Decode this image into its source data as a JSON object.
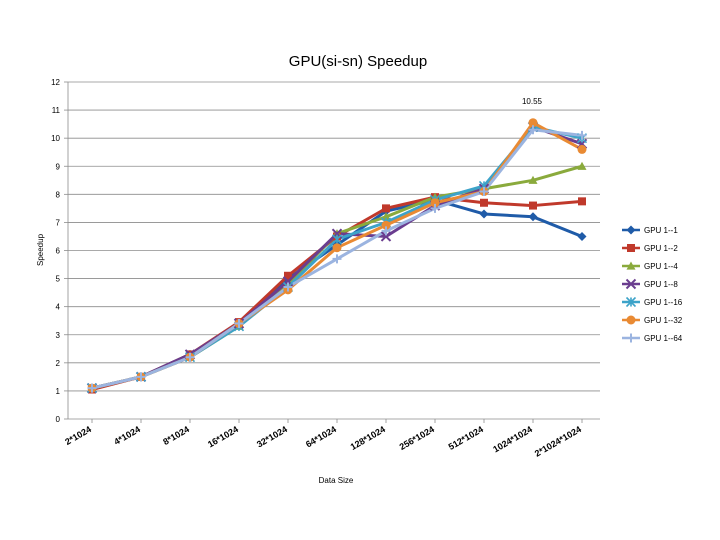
{
  "chart_data": {
    "type": "line",
    "title": "GPU(si-sn) Speedup",
    "xlabel": "Data Size",
    "ylabel": "Speedup",
    "ylim": [
      0,
      12
    ],
    "yticks": [
      0,
      1,
      2,
      3,
      4,
      5,
      6,
      7,
      8,
      9,
      10,
      11,
      12
    ],
    "grid": true,
    "legend_position": "right",
    "categories": [
      "2*1024",
      "4*1024",
      "8*1024",
      "16*1024",
      "32*1024",
      "64*1024",
      "128*1024",
      "256*1024",
      "512*1024",
      "1024*1024",
      "2*1024*1024"
    ],
    "annotation": {
      "text": "10.55",
      "series": "GPU 1--32",
      "index": 9
    },
    "series": [
      {
        "name": "GPU 1--1",
        "color": "#1f5ba8",
        "marker": "diamond",
        "values": [
          1.1,
          1.5,
          2.3,
          3.4,
          5.0,
          6.2,
          7.4,
          7.8,
          7.3,
          7.2,
          6.5
        ]
      },
      {
        "name": "GPU 1--2",
        "color": "#c0392b",
        "marker": "square",
        "values": [
          1.05,
          1.5,
          2.3,
          3.45,
          5.1,
          6.5,
          7.5,
          7.9,
          7.7,
          7.6,
          7.75
        ]
      },
      {
        "name": "GPU 1--4",
        "color": "#8aaa3c",
        "marker": "triangle",
        "values": [
          1.1,
          1.5,
          2.2,
          3.3,
          4.8,
          6.6,
          7.2,
          7.9,
          8.2,
          8.5,
          9.0
        ]
      },
      {
        "name": "GPU 1--8",
        "color": "#6a3d8f",
        "marker": "x",
        "values": [
          1.1,
          1.5,
          2.3,
          3.4,
          4.9,
          6.6,
          6.5,
          7.6,
          8.2,
          10.4,
          9.8
        ]
      },
      {
        "name": "GPU 1--16",
        "color": "#3da3c9",
        "marker": "asterisk",
        "values": [
          1.1,
          1.5,
          2.2,
          3.3,
          4.7,
          6.4,
          7.0,
          7.8,
          8.3,
          10.4,
          10.0
        ]
      },
      {
        "name": "GPU 1--32",
        "color": "#e98a33",
        "marker": "circle",
        "values": [
          1.1,
          1.5,
          2.2,
          3.4,
          4.6,
          6.1,
          6.9,
          7.7,
          8.1,
          10.55,
          9.6
        ]
      },
      {
        "name": "GPU 1--64",
        "color": "#9bb4e0",
        "marker": "plus",
        "values": [
          1.1,
          1.5,
          2.2,
          3.4,
          4.7,
          5.7,
          6.7,
          7.5,
          8.1,
          10.3,
          10.1
        ]
      }
    ]
  }
}
